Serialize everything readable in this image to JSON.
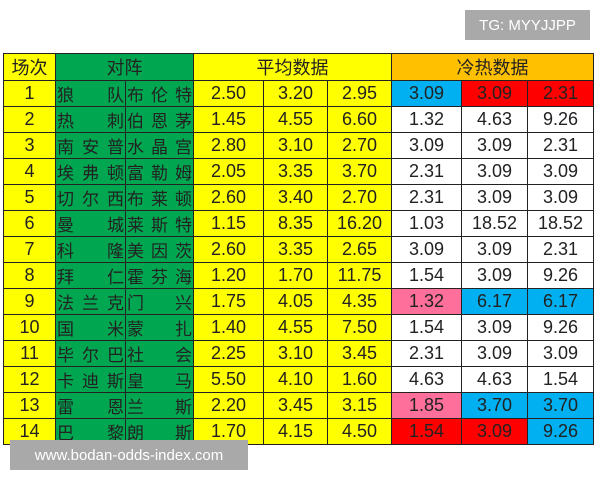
{
  "watermarks": {
    "top": "TG: MYYJJPP",
    "bottom": "www.bodan-odds-index.com"
  },
  "header": {
    "round": "场次",
    "match": "对阵",
    "avg": "平均数据",
    "hotcold": "冷热数据"
  },
  "colors": {
    "yellow": "#ffff00",
    "green": "#00a650",
    "orange": "#ffc000",
    "blue": "#00b0f0",
    "red": "#ff0000",
    "pink": "#ff6f9c"
  },
  "rows": [
    {
      "n": "1",
      "home": "狼队",
      "away": "布伦特",
      "avg": [
        "2.50",
        "3.20",
        "2.95"
      ],
      "hc": [
        "3.09",
        "3.09",
        "2.31"
      ],
      "hcColor": [
        "blue",
        "red",
        "red"
      ]
    },
    {
      "n": "2",
      "home": "热刺",
      "away": "伯恩茅",
      "avg": [
        "1.45",
        "4.55",
        "6.60"
      ],
      "hc": [
        "1.32",
        "4.63",
        "9.26"
      ],
      "hcColor": [
        "w",
        "w",
        "w"
      ]
    },
    {
      "n": "3",
      "home": "南安普",
      "away": "水晶宫",
      "avg": [
        "2.80",
        "3.10",
        "2.70"
      ],
      "hc": [
        "3.09",
        "3.09",
        "2.31"
      ],
      "hcColor": [
        "w",
        "w",
        "w"
      ]
    },
    {
      "n": "4",
      "home": "埃弗顿",
      "away": "富勒姆",
      "avg": [
        "2.05",
        "3.35",
        "3.70"
      ],
      "hc": [
        "2.31",
        "3.09",
        "3.09"
      ],
      "hcColor": [
        "w",
        "w",
        "w"
      ]
    },
    {
      "n": "5",
      "home": "切尔西",
      "away": "布莱顿",
      "avg": [
        "2.60",
        "3.40",
        "2.70"
      ],
      "hc": [
        "2.31",
        "3.09",
        "3.09"
      ],
      "hcColor": [
        "w",
        "w",
        "w"
      ]
    },
    {
      "n": "6",
      "home": "曼城",
      "away": "莱斯特",
      "avg": [
        "1.15",
        "8.35",
        "16.20"
      ],
      "hc": [
        "1.03",
        "18.52",
        "18.52"
      ],
      "hcColor": [
        "w",
        "w",
        "w"
      ]
    },
    {
      "n": "7",
      "home": "科隆",
      "away": "美因茨",
      "avg": [
        "2.60",
        "3.35",
        "2.65"
      ],
      "hc": [
        "3.09",
        "3.09",
        "2.31"
      ],
      "hcColor": [
        "w",
        "w",
        "w"
      ]
    },
    {
      "n": "8",
      "home": "拜仁",
      "away": "霍芬海",
      "avg": [
        "1.20",
        "1.70",
        "11.75"
      ],
      "hc": [
        "1.54",
        "3.09",
        "9.26"
      ],
      "hcColor": [
        "w",
        "w",
        "w"
      ]
    },
    {
      "n": "9",
      "home": "法兰克",
      "away": "门兴",
      "avg": [
        "1.75",
        "4.05",
        "4.35"
      ],
      "hc": [
        "1.32",
        "6.17",
        "6.17"
      ],
      "hcColor": [
        "pink",
        "blue",
        "blue"
      ]
    },
    {
      "n": "10",
      "home": "国米",
      "away": "蒙扎",
      "avg": [
        "1.40",
        "4.55",
        "7.50"
      ],
      "hc": [
        "1.54",
        "3.09",
        "9.26"
      ],
      "hcColor": [
        "w",
        "w",
        "w"
      ]
    },
    {
      "n": "11",
      "home": "毕尔巴",
      "away": "社会",
      "avg": [
        "2.25",
        "3.10",
        "3.45"
      ],
      "hc": [
        "2.31",
        "3.09",
        "3.09"
      ],
      "hcColor": [
        "w",
        "w",
        "w"
      ]
    },
    {
      "n": "12",
      "home": "卡迪斯",
      "away": "皇马",
      "avg": [
        "5.50",
        "4.10",
        "1.60"
      ],
      "hc": [
        "4.63",
        "4.63",
        "1.54"
      ],
      "hcColor": [
        "w",
        "w",
        "w"
      ]
    },
    {
      "n": "13",
      "home": "雷恩",
      "away": "兰斯",
      "avg": [
        "2.20",
        "3.45",
        "3.15"
      ],
      "hc": [
        "1.85",
        "3.70",
        "3.70"
      ],
      "hcColor": [
        "pink",
        "blue",
        "blue"
      ]
    },
    {
      "n": "14",
      "home": "巴黎",
      "away": "朗斯",
      "avg": [
        "1.70",
        "4.15",
        "4.50"
      ],
      "hc": [
        "1.54",
        "3.09",
        "9.26"
      ],
      "hcColor": [
        "red",
        "red",
        "blue"
      ]
    }
  ]
}
